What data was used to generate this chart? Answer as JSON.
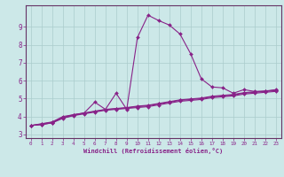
{
  "xlabel": "Windchill (Refroidissement éolien,°C)",
  "background_color": "#cce8e8",
  "grid_color": "#aacccc",
  "line_color": "#882288",
  "spine_color": "#663366",
  "xlim": [
    -0.5,
    23.5
  ],
  "ylim": [
    2.8,
    10.2
  ],
  "yticks": [
    3,
    4,
    5,
    6,
    7,
    8,
    9
  ],
  "xticks": [
    0,
    1,
    2,
    3,
    4,
    5,
    6,
    7,
    8,
    9,
    10,
    11,
    12,
    13,
    14,
    15,
    16,
    17,
    18,
    19,
    20,
    21,
    22,
    23
  ],
  "series": [
    {
      "x": [
        0,
        1,
        2,
        3,
        4,
        5,
        6,
        7,
        8,
        9,
        10,
        11,
        12,
        13,
        14,
        15,
        16,
        17,
        18,
        19,
        20,
        21,
        22,
        23
      ],
      "y": [
        3.5,
        3.6,
        3.7,
        4.0,
        4.1,
        4.2,
        4.8,
        4.4,
        5.3,
        4.4,
        8.4,
        9.65,
        9.35,
        9.1,
        8.6,
        7.5,
        6.1,
        5.65,
        5.6,
        5.3,
        5.5,
        5.4,
        5.4,
        5.5
      ]
    },
    {
      "x": [
        0,
        1,
        2,
        3,
        4,
        5,
        6,
        7,
        8,
        9,
        10,
        11,
        12,
        13,
        14,
        15,
        16,
        17,
        18,
        19,
        20,
        21,
        22,
        23
      ],
      "y": [
        3.5,
        3.55,
        3.65,
        3.9,
        4.05,
        4.15,
        4.25,
        4.35,
        4.4,
        4.45,
        4.5,
        4.55,
        4.65,
        4.75,
        4.85,
        4.9,
        4.95,
        5.05,
        5.1,
        5.15,
        5.25,
        5.3,
        5.35,
        5.4
      ]
    },
    {
      "x": [
        0,
        1,
        2,
        3,
        4,
        5,
        6,
        7,
        8,
        9,
        10,
        11,
        12,
        13,
        14,
        15,
        16,
        17,
        18,
        19,
        20,
        21,
        22,
        23
      ],
      "y": [
        3.5,
        3.55,
        3.65,
        3.92,
        4.07,
        4.18,
        4.28,
        4.38,
        4.43,
        4.48,
        4.55,
        4.6,
        4.7,
        4.8,
        4.9,
        4.95,
        5.0,
        5.1,
        5.15,
        5.2,
        5.3,
        5.35,
        5.4,
        5.45
      ]
    },
    {
      "x": [
        0,
        1,
        2,
        3,
        4,
        5,
        6,
        7,
        8,
        9,
        10,
        11,
        12,
        13,
        14,
        15,
        16,
        17,
        18,
        19,
        20,
        21,
        22,
        23
      ],
      "y": [
        3.5,
        3.58,
        3.68,
        3.95,
        4.1,
        4.2,
        4.3,
        4.4,
        4.45,
        4.5,
        4.58,
        4.63,
        4.73,
        4.83,
        4.93,
        4.98,
        5.03,
        5.13,
        5.18,
        5.23,
        5.33,
        5.38,
        5.43,
        5.48
      ]
    }
  ]
}
